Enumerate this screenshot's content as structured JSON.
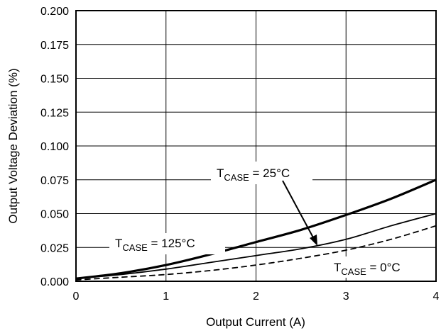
{
  "chart_data": {
    "type": "line",
    "title": "",
    "xlabel": "Output Current (A)",
    "ylabel": "Output Voltage Deviation (%)",
    "xlim": [
      0,
      4
    ],
    "ylim": [
      0,
      0.2
    ],
    "x_ticks": [
      "0",
      "1",
      "2",
      "3",
      "4"
    ],
    "y_ticks": [
      "0.000",
      "0.025",
      "0.050",
      "0.075",
      "0.100",
      "0.125",
      "0.150",
      "0.175",
      "0.200"
    ],
    "grid": true,
    "series": [
      {
        "name": "TCASE = 25°C",
        "label_main": "T",
        "label_sub": "CASE",
        "label_rest": " = 25°C",
        "style": "thick",
        "x": [
          0,
          0.5,
          1,
          1.5,
          2,
          2.5,
          3,
          3.5,
          4
        ],
        "y": [
          0.002,
          0.006,
          0.012,
          0.02,
          0.029,
          0.038,
          0.049,
          0.061,
          0.075
        ]
      },
      {
        "name": "TCASE = 125°C",
        "label_main": "T",
        "label_sub": "CASE",
        "label_rest": " = 125°C",
        "style": "thin",
        "x": [
          0,
          0.5,
          1,
          1.5,
          2,
          2.5,
          3,
          3.5,
          4
        ],
        "y": [
          0.002,
          0.005,
          0.009,
          0.014,
          0.019,
          0.024,
          0.031,
          0.041,
          0.05
        ]
      },
      {
        "name": "TCASE = 0°C",
        "label_main": "T",
        "label_sub": "CASE",
        "label_rest": " = 0°C",
        "style": "dashed",
        "x": [
          0,
          0.5,
          1,
          1.5,
          2,
          2.5,
          3,
          3.5,
          4
        ],
        "y": [
          0.001,
          0.003,
          0.005,
          0.008,
          0.012,
          0.017,
          0.023,
          0.031,
          0.041
        ]
      }
    ]
  }
}
